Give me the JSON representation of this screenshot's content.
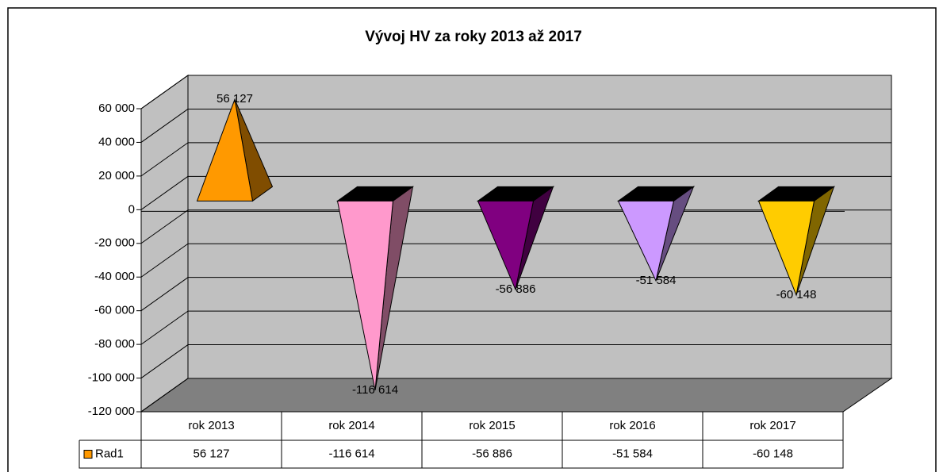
{
  "chart_data": {
    "type": "pyramid3d",
    "title": "Vývoj HV za roky 2013 až 2017",
    "categories": [
      "rok 2013",
      "rok 2014",
      "rok 2015",
      "rok 2016",
      "rok 2017"
    ],
    "series": [
      {
        "name": "Rad1",
        "color": "#ff9900",
        "values": [
          56127,
          -116614,
          -56886,
          -51584,
          -60148
        ],
        "value_labels": [
          "56 127",
          "-116 614",
          "-56 886",
          "-51 584",
          "-60 148"
        ],
        "colors": [
          "#ff9900",
          "#ff99cc",
          "#800080",
          "#cc99ff",
          "#ffcc00"
        ]
      }
    ],
    "ylim": [
      -120000,
      60000
    ],
    "yticks": [
      {
        "value": -120000,
        "label": "-120 000"
      },
      {
        "value": -100000,
        "label": "-100 000"
      },
      {
        "value": -80000,
        "label": "-80 000"
      },
      {
        "value": -60000,
        "label": "-60 000"
      },
      {
        "value": -40000,
        "label": "-40 000"
      },
      {
        "value": -20000,
        "label": "-20 000"
      },
      0,
      {
        "value": 20000,
        "label": "20 000"
      },
      {
        "value": 40000,
        "label": "40 000"
      },
      {
        "value": 60000,
        "label": "60 000"
      }
    ],
    "grid": true,
    "data_table": true
  }
}
